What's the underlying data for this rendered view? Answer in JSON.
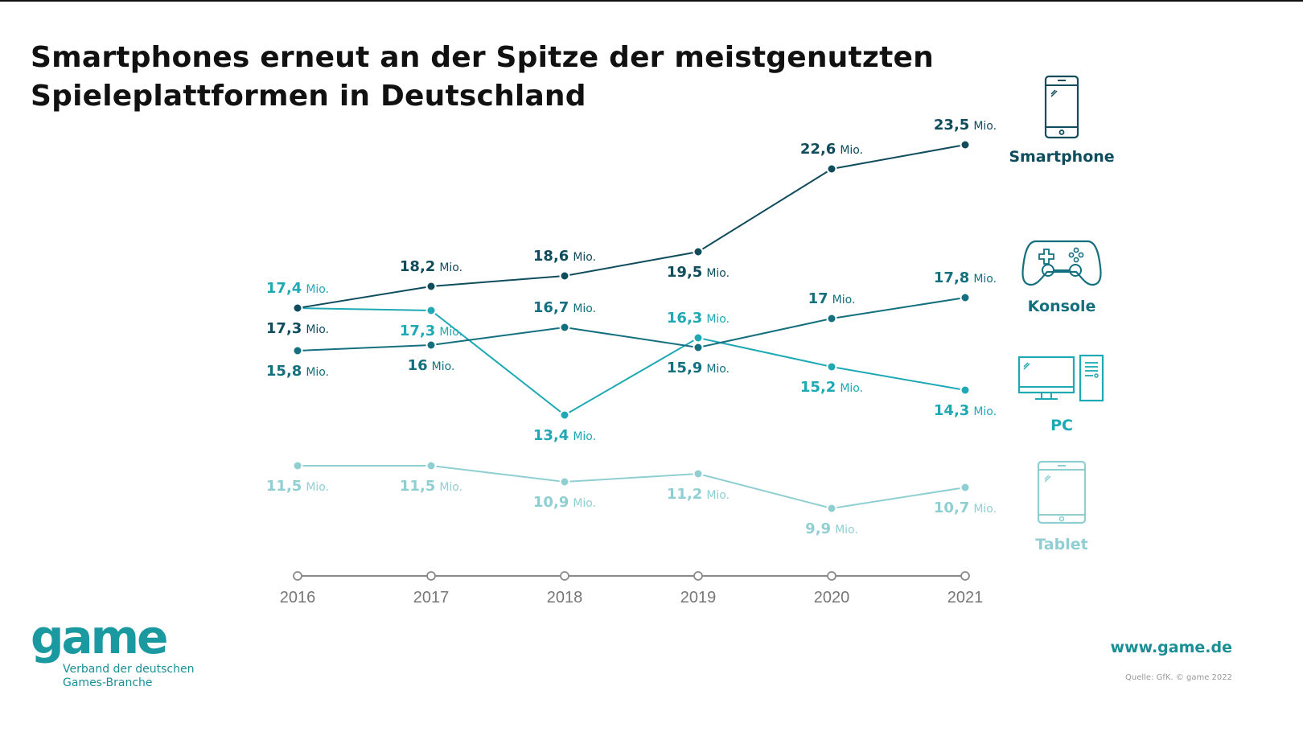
{
  "title_line1": "Smartphones erneut an der Spitze der meistgenutzten",
  "title_line2": "Spieleplattformen in Deutschland",
  "unit": "Mio.",
  "colors": {
    "smartphone": "#0f4c5c",
    "konsole": "#14707e",
    "pc": "#1fa9b5",
    "tablet": "#8fcfd2",
    "axis": "#8a8a8a",
    "brand": "#1a9aa0"
  },
  "legend": [
    {
      "key": "smartphone",
      "label": "Smartphone",
      "icon": "smartphone-icon"
    },
    {
      "key": "konsole",
      "label": "Konsole",
      "icon": "gamepad-icon"
    },
    {
      "key": "pc",
      "label": "PC",
      "icon": "desktop-pc-icon"
    },
    {
      "key": "tablet",
      "label": "Tablet",
      "icon": "tablet-icon"
    }
  ],
  "chart_data": {
    "type": "line",
    "title": "Smartphones erneut an der Spitze der meistgenutzten Spieleplattformen in Deutschland",
    "xlabel": "",
    "ylabel": "",
    "x": [
      "2016",
      "2017",
      "2018",
      "2019",
      "2020",
      "2021"
    ],
    "unit": "Mio.",
    "grid": false,
    "legend_position": "right",
    "series": [
      {
        "key": "smartphone",
        "name": "Smartphone",
        "values": [
          17.3,
          18.2,
          18.6,
          19.5,
          22.6,
          23.5
        ],
        "labels": [
          "17,3",
          "18,2",
          "18,6",
          "19,5",
          "22,6",
          "23,5"
        ]
      },
      {
        "key": "konsole",
        "name": "Konsole",
        "values": [
          15.8,
          16,
          16.7,
          15.9,
          17,
          17.8
        ],
        "labels": [
          "15,8",
          "16",
          "16,7",
          "15,9",
          "17",
          "17,8"
        ]
      },
      {
        "key": "pc",
        "name": "PC",
        "values": [
          17.4,
          17.3,
          13.4,
          16.3,
          15.2,
          14.3
        ],
        "labels": [
          "17,4",
          "17,3",
          "13,4",
          "16,3",
          "15,2",
          "14,3"
        ]
      },
      {
        "key": "tablet",
        "name": "Tablet",
        "values": [
          11.5,
          11.5,
          10.9,
          11.2,
          9.9,
          10.7
        ],
        "labels": [
          "11,5",
          "11,5",
          "10,9",
          "11,2",
          "9,9",
          "10,7"
        ]
      }
    ]
  },
  "footer": {
    "logo_word": "game",
    "logo_sub_1": "Verband der deutschen",
    "logo_sub_2": "Games-Branche",
    "url": "www.game.de",
    "source": "Quelle: GfK. © game 2022"
  }
}
